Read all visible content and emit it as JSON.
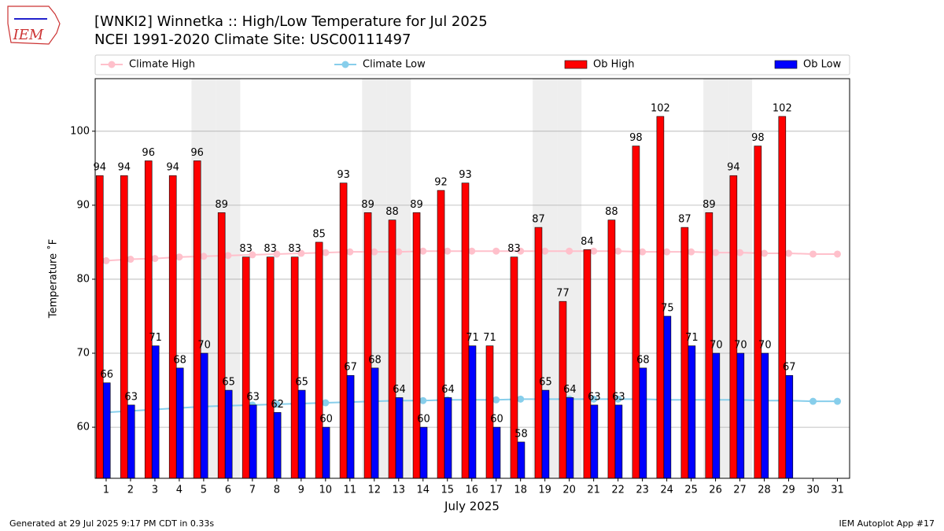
{
  "chart_data": {
    "type": "bar",
    "title": "[WNKI2] Winnetka :: High/Low Temperature for Jul 2025",
    "subtitle": "NCEI 1991-2020 Climate Site: USC00111497",
    "logo_text": "IEM",
    "x_label": "July 2025",
    "y_label": "Temperature ˚F",
    "footer_left": "Generated at 29 Jul 2025 9:17 PM CDT in 0.33s",
    "footer_right": "IEM Autoplot App #17",
    "x": [
      1,
      2,
      3,
      4,
      5,
      6,
      7,
      8,
      9,
      10,
      11,
      12,
      13,
      14,
      15,
      16,
      17,
      18,
      19,
      20,
      21,
      22,
      23,
      24,
      25,
      26,
      27,
      28,
      29,
      30,
      31
    ],
    "xlim": [
      0.55,
      31.5
    ],
    "ylim": [
      53.1,
      107.1
    ],
    "yticks": [
      60,
      70,
      80,
      90,
      100
    ],
    "grid": true,
    "shaded_days": [
      5,
      6,
      12,
      13,
      19,
      20,
      26,
      27
    ],
    "series": [
      {
        "name": "Climate High",
        "type": "line",
        "color": "#ffc0cb",
        "values": [
          82.5,
          82.7,
          82.8,
          83.0,
          83.1,
          83.2,
          83.3,
          83.4,
          83.5,
          83.6,
          83.7,
          83.7,
          83.7,
          83.8,
          83.8,
          83.8,
          83.8,
          83.8,
          83.8,
          83.8,
          83.8,
          83.8,
          83.7,
          83.7,
          83.7,
          83.6,
          83.6,
          83.5,
          83.5,
          83.4,
          83.4
        ]
      },
      {
        "name": "Climate Low",
        "type": "line",
        "color": "#87ceeb",
        "values": [
          62.0,
          62.2,
          62.4,
          62.6,
          62.8,
          62.9,
          63.0,
          63.1,
          63.2,
          63.3,
          63.4,
          63.5,
          63.6,
          63.6,
          63.7,
          63.7,
          63.7,
          63.8,
          63.8,
          63.8,
          63.8,
          63.8,
          63.8,
          63.7,
          63.7,
          63.7,
          63.7,
          63.6,
          63.6,
          63.5,
          63.5
        ]
      },
      {
        "name": "Ob High",
        "type": "bar",
        "color": "#ff0000",
        "values": [
          94,
          94,
          96,
          94,
          96,
          89,
          83,
          83,
          83,
          85,
          93,
          89,
          88,
          89,
          92,
          93,
          71,
          83,
          87,
          77,
          84,
          88,
          98,
          102,
          87,
          89,
          94,
          98,
          102,
          null,
          null
        ]
      },
      {
        "name": "Ob Low",
        "type": "bar",
        "color": "#0000ff",
        "values": [
          66,
          63,
          71,
          68,
          70,
          65,
          63,
          62,
          65,
          60,
          67,
          68,
          64,
          60,
          64,
          71,
          60,
          58,
          65,
          64,
          63,
          63,
          68,
          75,
          71,
          70,
          70,
          70,
          67,
          null,
          null
        ]
      }
    ]
  }
}
